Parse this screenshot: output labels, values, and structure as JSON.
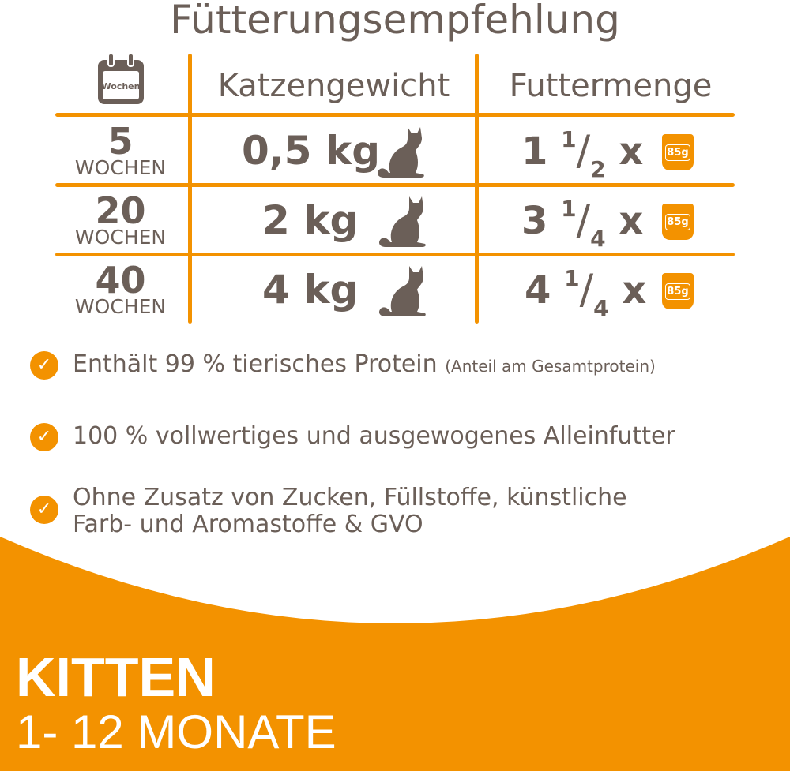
{
  "title": "Fütterungsempfehlung",
  "table": {
    "calendar_label": "Wochen",
    "headers": [
      "Katzengewicht",
      "Futtermenge"
    ],
    "rows": [
      {
        "weeks": "5",
        "unit": "WOCHEN",
        "weight": "0,5 kg",
        "whole": "1",
        "num": "1",
        "den": "2",
        "x": "x",
        "pouch": "85g"
      },
      {
        "weeks": "20",
        "unit": "WOCHEN",
        "weight": "2 kg",
        "whole": "3",
        "num": "1",
        "den": "4",
        "x": "x",
        "pouch": "85g"
      },
      {
        "weeks": "40",
        "unit": "WOCHEN",
        "weight": "4 kg",
        "whole": "4",
        "num": "1",
        "den": "4",
        "x": "x",
        "pouch": "85g"
      }
    ]
  },
  "bullets": [
    {
      "text": "Enthält 99 % tierisches Protein",
      "note": "(Anteil am Gesamtprotein)"
    },
    {
      "text": "100 % vollwertiges und ausgewogenes Alleinfutter"
    },
    {
      "text": "Ohne Zusatz von Zucken, Füllstoffe, künstliche Farb- und Aromastoffe & GVO"
    }
  ],
  "banner": {
    "line1": "KITTEN",
    "line2": "1- 12 MONATE"
  },
  "colors": {
    "accent": "#f39200",
    "text": "#6b5f58"
  },
  "icons": {
    "check": "check-circle-icon",
    "calendar": "calendar-icon",
    "cat": "cat-silhouette-icon",
    "pouch": "food-pouch-icon"
  }
}
